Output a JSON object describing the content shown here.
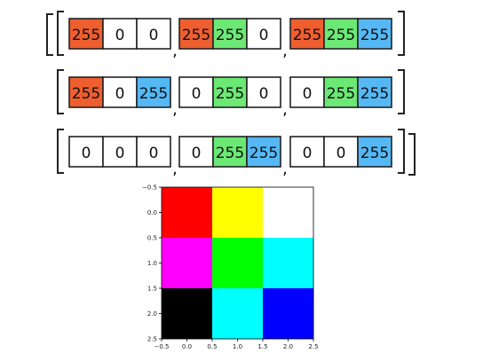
{
  "colors": {
    "red_channel": "#ee5e2f",
    "green_channel": "#6ce875",
    "blue_channel": "#55b8f5",
    "empty": "#ffffff"
  },
  "rows": [
    {
      "pixels": [
        {
          "values": [
            "255",
            "0",
            "0"
          ]
        },
        {
          "values": [
            "255",
            "255",
            "0"
          ]
        },
        {
          "values": [
            "255",
            "255",
            "255"
          ]
        }
      ]
    },
    {
      "pixels": [
        {
          "values": [
            "255",
            "0",
            "255"
          ]
        },
        {
          "values": [
            "0",
            "255",
            "0"
          ]
        },
        {
          "values": [
            "0",
            "255",
            "255"
          ]
        }
      ]
    },
    {
      "pixels": [
        {
          "values": [
            "0",
            "0",
            "0"
          ]
        },
        {
          "values": [
            "0",
            "255",
            "255"
          ]
        },
        {
          "values": [
            "0",
            "0",
            "255"
          ]
        }
      ]
    }
  ],
  "separator": ",",
  "chart_data": {
    "type": "heatmap",
    "rows": 3,
    "cols": 3,
    "cells": [
      [
        "#ff0000",
        "#ffff00",
        "#ffffff"
      ],
      [
        "#ff00ff",
        "#00ff00",
        "#00ffff"
      ],
      [
        "#000000",
        "#00ffff",
        "#0000ff"
      ]
    ],
    "xlim": [
      -0.5,
      2.5
    ],
    "ylim": [
      2.5,
      -0.5
    ],
    "xticks": [
      "−0.5",
      "0.0",
      "0.5",
      "1.0",
      "1.5",
      "2.0",
      "2.5"
    ],
    "yticks": [
      "−0.5",
      "0.0",
      "0.5",
      "1.0",
      "1.5",
      "2.0",
      "2.5"
    ],
    "grid": false,
    "title": "",
    "xlabel": "",
    "ylabel": ""
  }
}
